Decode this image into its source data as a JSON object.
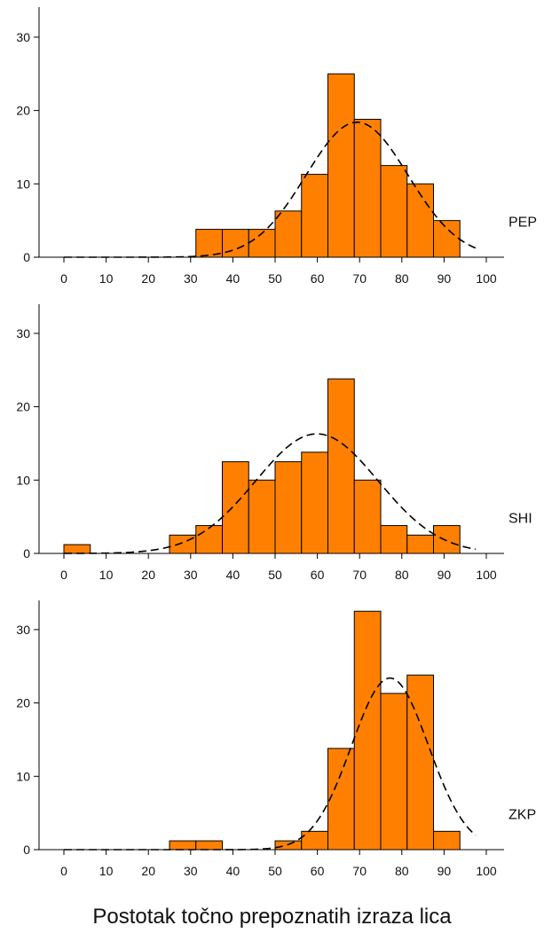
{
  "colors": {
    "bar_fill": "#ff8000",
    "bar_stroke": "#000000",
    "axis": "#000000",
    "curve": "#000000"
  },
  "xlabel": "Postotak točno prepoznatih izraza lica",
  "chart_data": [
    {
      "type": "bar",
      "label": "PEP",
      "bin_width": 6.25,
      "bin_starts": [
        0,
        6.25,
        12.5,
        18.75,
        25,
        31.25,
        37.5,
        43.75,
        50,
        56.25,
        62.5,
        68.75,
        75,
        81.25,
        87.5,
        93.75
      ],
      "values": [
        0,
        0,
        0,
        0,
        0,
        3.8,
        3.8,
        3.8,
        6.3,
        11.3,
        25,
        18.8,
        12.5,
        10,
        5,
        0
      ],
      "fit_curve": {
        "type": "normal",
        "peak_x": 69.4,
        "peak_y": 18.4,
        "sd": 12.1,
        "style": "dashed"
      },
      "x_ticks": [
        0,
        10,
        20,
        30,
        40,
        50,
        60,
        70,
        80,
        90,
        100
      ],
      "y_ticks": [
        0,
        10,
        20,
        30
      ],
      "xlim": [
        -7,
        104
      ],
      "ylim": [
        0,
        34
      ]
    },
    {
      "type": "bar",
      "label": "SHI",
      "bin_width": 6.25,
      "bin_starts": [
        0,
        6.25,
        12.5,
        18.75,
        25,
        31.25,
        37.5,
        43.75,
        50,
        56.25,
        62.5,
        68.75,
        75,
        81.25,
        87.5,
        93.75
      ],
      "values": [
        1.2,
        0,
        0,
        0,
        2.5,
        3.8,
        12.5,
        10,
        12.5,
        13.8,
        23.8,
        10,
        3.8,
        2.5,
        3.8,
        0
      ],
      "fit_curve": {
        "type": "normal",
        "peak_x": 59.9,
        "peak_y": 16.3,
        "sd": 14.5,
        "style": "dashed"
      },
      "x_ticks": [
        0,
        10,
        20,
        30,
        40,
        50,
        60,
        70,
        80,
        90,
        100
      ],
      "y_ticks": [
        0,
        10,
        20,
        30
      ],
      "xlim": [
        -7,
        104
      ],
      "ylim": [
        0,
        34
      ]
    },
    {
      "type": "bar",
      "label": "ZKP",
      "bin_width": 6.25,
      "bin_starts": [
        0,
        6.25,
        12.5,
        18.75,
        25,
        31.25,
        37.5,
        43.75,
        50,
        56.25,
        62.5,
        68.75,
        75,
        81.25,
        87.5,
        93.75
      ],
      "values": [
        0,
        0,
        0,
        0,
        1.2,
        1.2,
        0,
        0,
        1.2,
        2.5,
        13.8,
        32.5,
        21.3,
        23.8,
        2.5,
        0
      ],
      "fit_curve": {
        "type": "normal",
        "peak_x": 77.2,
        "peak_y": 23.4,
        "sd": 9.1,
        "style": "dashed"
      },
      "x_ticks": [
        0,
        10,
        20,
        30,
        40,
        50,
        60,
        70,
        80,
        90,
        100
      ],
      "y_ticks": [
        0,
        10,
        20,
        30
      ],
      "xlim": [
        -7,
        104
      ],
      "ylim": [
        0,
        34
      ]
    }
  ]
}
